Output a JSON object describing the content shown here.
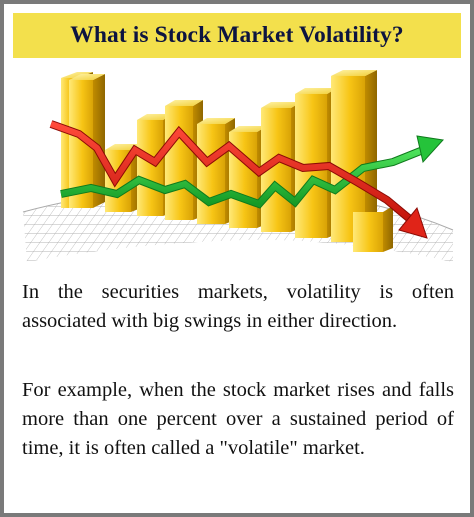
{
  "title": "What is Stock Market Volatility?",
  "paragraphs": [
    "In the securities markets, volatility is often associated with big swings in either direction.",
    "For example, when the stock market rises and falls more than one percent over a sustained period of time, it is often called a \"volatile\" market."
  ],
  "illustration": {
    "description_icon": "stock-volatility-chart-illustration",
    "colors": {
      "bar_light": "#ffe04a",
      "bar_dark": "#c99600",
      "red_arrow": "#e02418",
      "green_arrow": "#25c33a",
      "title_bg": "#f3e04c",
      "title_text": "#0d1440"
    }
  }
}
